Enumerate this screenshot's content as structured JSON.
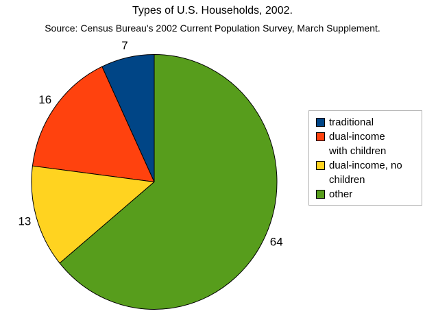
{
  "chart_data": {
    "type": "pie",
    "title": "Types of U.S. Households, 2002.",
    "subtitle": "Source: Census Bureau's 2002 Current Population Survey, March Supplement.",
    "categories": [
      "traditional",
      "dual-income with children",
      "dual-income, no children",
      "other"
    ],
    "values": [
      7,
      16,
      13,
      64
    ],
    "colors": [
      "#004586",
      "#ff420e",
      "#ffd320",
      "#579d1c"
    ],
    "slice_outline_color": "#000000",
    "data_labels": [
      "7",
      "16",
      "13",
      "64"
    ],
    "start_angle": "12-oclock",
    "direction": "counterclockwise",
    "legend_position": "right",
    "background_color": "#ffffff"
  },
  "legend": {
    "items": [
      {
        "label": "traditional",
        "color": "#004586"
      },
      {
        "label": "dual-income\nwith children",
        "color": "#ff420e"
      },
      {
        "label": "dual-income, no\nchildren",
        "color": "#ffd320"
      },
      {
        "label": "other",
        "color": "#579d1c"
      }
    ]
  }
}
